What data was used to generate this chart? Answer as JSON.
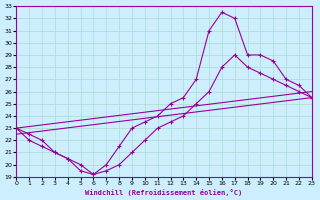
{
  "xlabel": "Windchill (Refroidissement éolien,°C)",
  "bg_color": "#cceeff",
  "grid_color": "#aaddcc",
  "line_color": "#990099",
  "xlim": [
    0,
    23
  ],
  "ylim": [
    19,
    33
  ],
  "xticks": [
    0,
    1,
    2,
    3,
    4,
    5,
    6,
    7,
    8,
    9,
    10,
    11,
    12,
    13,
    14,
    15,
    16,
    17,
    18,
    19,
    20,
    21,
    22,
    23
  ],
  "yticks": [
    19,
    20,
    21,
    22,
    23,
    24,
    25,
    26,
    27,
    28,
    29,
    30,
    31,
    32,
    33
  ],
  "line1_x": [
    0,
    1,
    2,
    3,
    4,
    5,
    6,
    7,
    8,
    9,
    10,
    11,
    12,
    13,
    14,
    15,
    16,
    17,
    18,
    19,
    20,
    21,
    22,
    23
  ],
  "line1_y": [
    23,
    22.5,
    22,
    21,
    20.5,
    20,
    19.2,
    20,
    21.5,
    23,
    23.5,
    24,
    25,
    25.5,
    27,
    31,
    32.5,
    32,
    29,
    29,
    28.5,
    27,
    26.5,
    25.5
  ],
  "line2_x": [
    0,
    1,
    2,
    3,
    4,
    5,
    6,
    7,
    8,
    9,
    10,
    11,
    12,
    13,
    14,
    15,
    16,
    17,
    18,
    19,
    20,
    21,
    22,
    23
  ],
  "line2_y": [
    23,
    22,
    21.5,
    21,
    20.5,
    19.5,
    19.2,
    19.5,
    20,
    21,
    22,
    23,
    23.5,
    24,
    25,
    26,
    28,
    29,
    28,
    27.5,
    27,
    26.5,
    26,
    25.5
  ],
  "line3_x": [
    0,
    23
  ],
  "line3_y": [
    23,
    26
  ],
  "line4_x": [
    0,
    23
  ],
  "line4_y": [
    22.5,
    25.5
  ]
}
